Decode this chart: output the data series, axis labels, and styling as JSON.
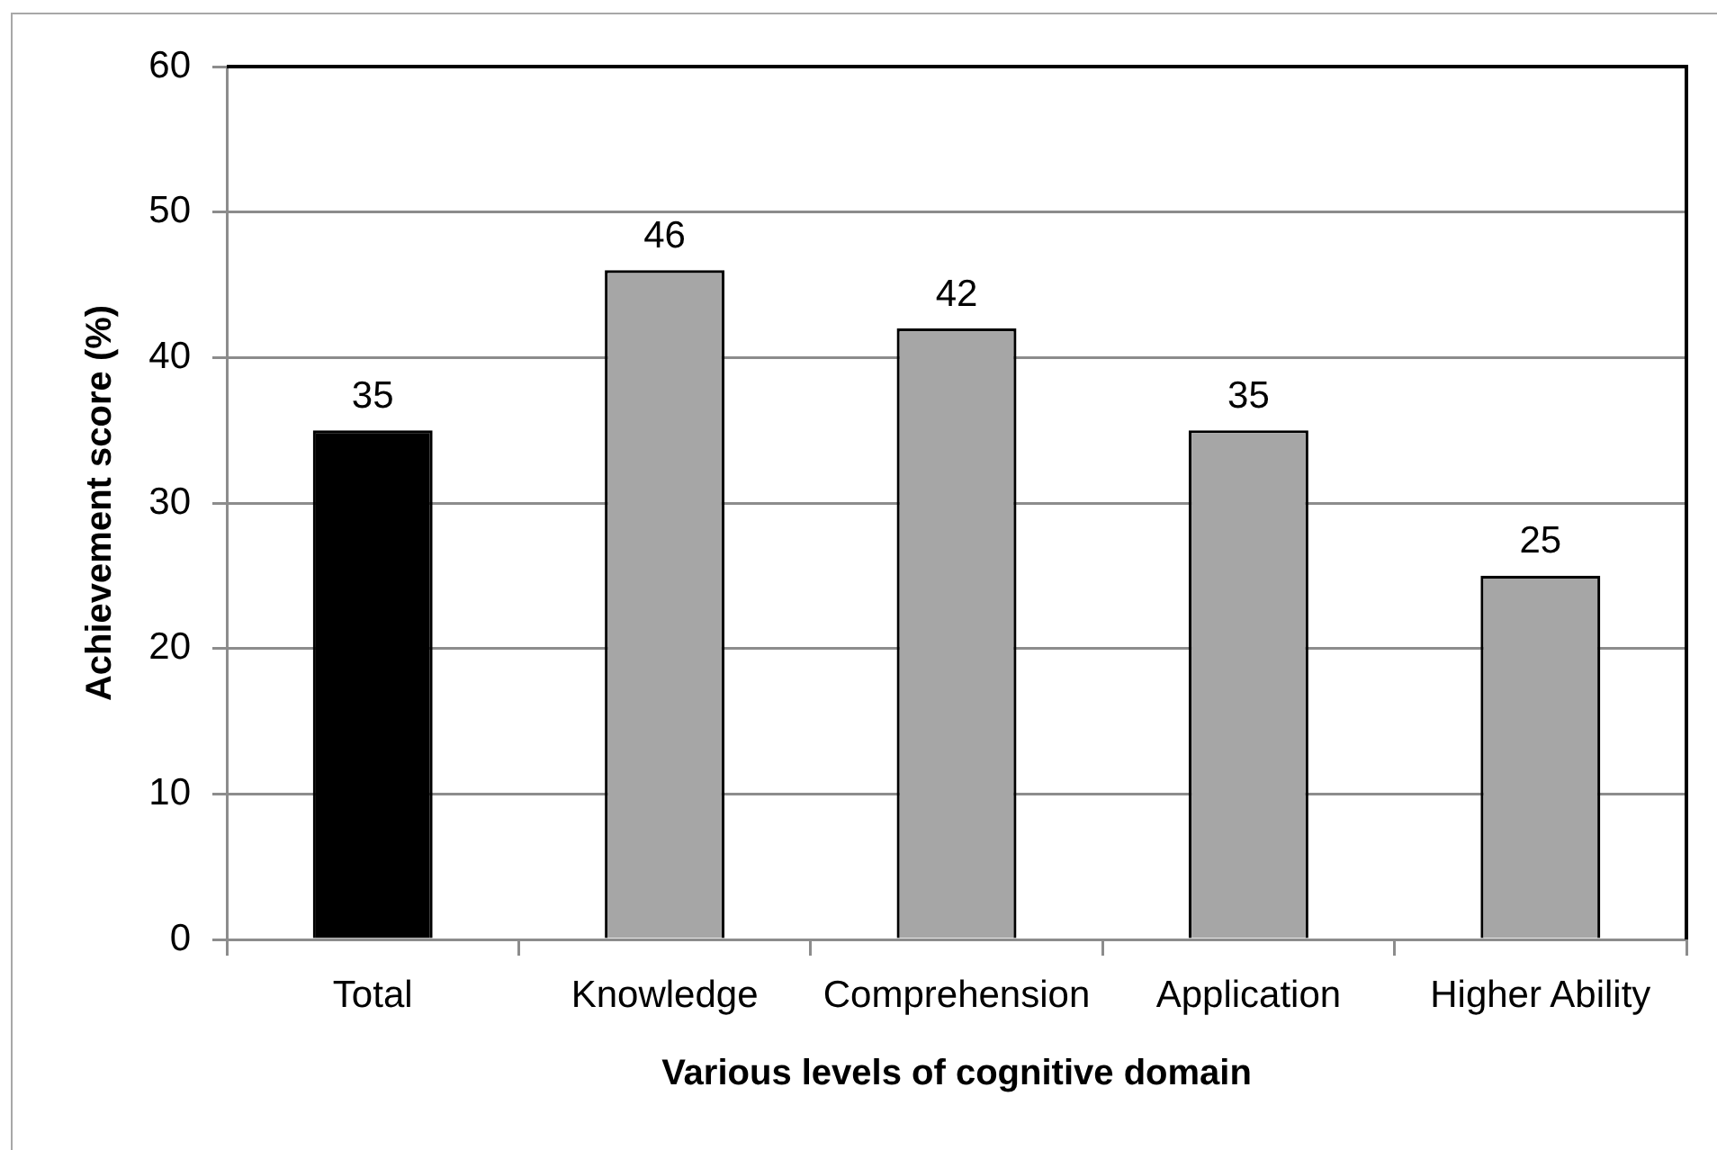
{
  "chart_data": {
    "type": "bar",
    "xlabel": "Various levels of cognitive domain",
    "ylabel": "Achievement score (%)",
    "categories": [
      "Total",
      "Knowledge",
      "Comprehension",
      "Application",
      "Higher Ability"
    ],
    "values": [
      35,
      46,
      42,
      35,
      25
    ],
    "colors": [
      "#000000",
      "#a6a6a6",
      "#a6a6a6",
      "#a6a6a6",
      "#a6a6a6"
    ],
    "ylim": [
      0,
      60
    ],
    "yticks": [
      0,
      10,
      20,
      30,
      40,
      50,
      60
    ],
    "grid": "y",
    "data_labels": true
  }
}
